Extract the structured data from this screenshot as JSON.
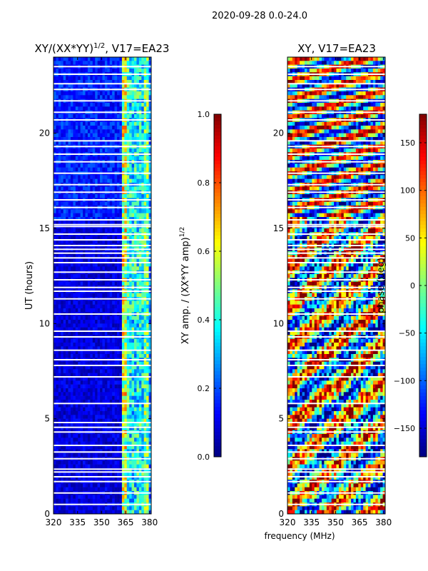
{
  "suptitle": "2020-09-28 0.0-24.0",
  "shared_xlabel": "frequency (MHz)",
  "chart_data": [
    {
      "type": "heatmap",
      "title_main": "XY/(XX*YY)",
      "title_sup": "1/2",
      "title_tail": ", V17=EA23",
      "ylabel": "UT (hours)",
      "xlim": [
        320,
        381
      ],
      "ylim": [
        0,
        24
      ],
      "xticks": [
        "320",
        "335",
        "350",
        "365",
        "380"
      ],
      "xtick_values": [
        320,
        335,
        350,
        365,
        380
      ],
      "yticks": [
        "0",
        "5",
        "10",
        "15",
        "20"
      ],
      "ytick_values": [
        0,
        5,
        10,
        15,
        20
      ],
      "colorbar": {
        "label_main": "XY amp. / (XX*YY amp)",
        "label_sup": "1/2",
        "range": [
          0.0,
          1.0
        ],
        "ticks": [
          "0.0",
          "0.2",
          "0.4",
          "0.6",
          "0.8",
          "1.0"
        ],
        "tick_values": [
          0.0,
          0.2,
          0.4,
          0.6,
          0.8,
          1.0
        ],
        "colormap": "jet"
      }
    },
    {
      "type": "heatmap",
      "title": "XY, V17=EA23",
      "xlim": [
        320,
        381
      ],
      "ylim": [
        0,
        24
      ],
      "xticks": [
        "320",
        "335",
        "350",
        "365",
        "380"
      ],
      "xtick_values": [
        320,
        335,
        350,
        365,
        380
      ],
      "yticks": [
        "0",
        "5",
        "10",
        "15",
        "20"
      ],
      "ytick_values": [
        0,
        5,
        10,
        15,
        20
      ],
      "colorbar": {
        "label": "phase (deg)",
        "range": [
          -180,
          180
        ],
        "ticks": [
          "−150",
          "−100",
          "−50",
          "0",
          "50",
          "100",
          "150"
        ],
        "tick_values": [
          -150,
          -100,
          -50,
          0,
          50,
          100,
          150
        ],
        "colormap": "jet"
      }
    }
  ],
  "flagged_hours": [
    0.5,
    1.1,
    1.7,
    1.95,
    2.2,
    2.35,
    2.9,
    3.25,
    3.6,
    4.3,
    4.55,
    4.8,
    5.8,
    7.2,
    7.8,
    8.1,
    8.6,
    9.3,
    9.6,
    10.5,
    11.3,
    11.7,
    11.9,
    12.3,
    12.7,
    13.2,
    13.45,
    13.7,
    13.9,
    14.1,
    14.4,
    14.7,
    15.1,
    15.2,
    15.45,
    16.1,
    16.5,
    16.9,
    17.3,
    17.9,
    18.5,
    18.9,
    19.3,
    19.6,
    20.7,
    21.1,
    21.7,
    22.3,
    22.6,
    23.1,
    23.5
  ]
}
